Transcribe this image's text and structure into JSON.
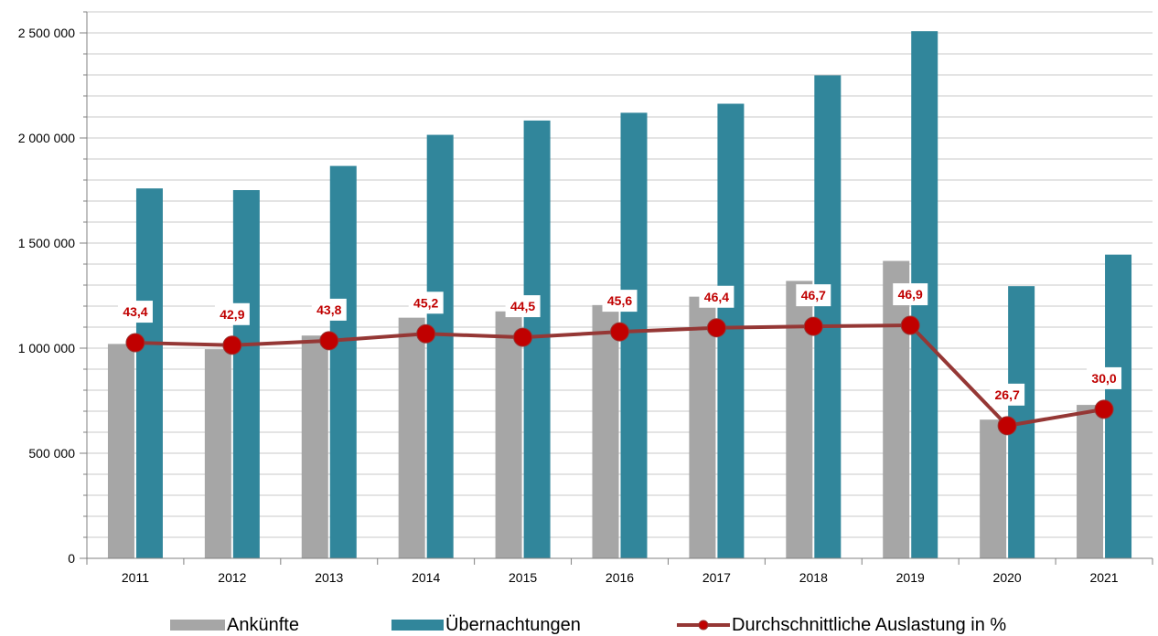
{
  "chart_data": {
    "type": "bar",
    "categories": [
      "2011",
      "2012",
      "2013",
      "2014",
      "2015",
      "2016",
      "2017",
      "2018",
      "2019",
      "2020",
      "2021"
    ],
    "series": [
      {
        "name": "Ankünfte",
        "type": "bar",
        "axis": "left",
        "color": "#A6A6A6",
        "values": [
          1020000,
          995000,
          1060000,
          1145000,
          1175000,
          1205000,
          1245000,
          1320000,
          1415000,
          660000,
          730000
        ]
      },
      {
        "name": "Übernachtungen",
        "type": "bar",
        "axis": "left",
        "color": "#31869B",
        "values": [
          1760000,
          1752000,
          1867000,
          2015000,
          2083000,
          2120000,
          2163000,
          2298000,
          2508000,
          1295000,
          1445000
        ]
      },
      {
        "name": "Durchschnittliche Auslastung in %",
        "type": "line",
        "axis": "right",
        "color": "#953735",
        "marker_color": "#C00000",
        "values": [
          43.4,
          42.9,
          43.8,
          45.2,
          44.5,
          45.6,
          46.4,
          46.7,
          46.9,
          26.7,
          30.0
        ],
        "labels": [
          "43,4",
          "42,9",
          "43,8",
          "45,2",
          "44,5",
          "45,6",
          "46,4",
          "46,7",
          "46,9",
          "26,7",
          "30,0"
        ]
      }
    ],
    "y_axis": {
      "ylim": [
        0,
        2500000
      ],
      "ticks": [
        0,
        500000,
        1000000,
        1500000,
        2000000,
        2500000
      ],
      "tick_labels": [
        "0",
        "500 000",
        "1 000 000",
        "1 500 000",
        "2 000 000",
        "2 500 000"
      ]
    },
    "secondary_axis_range": [
      0,
      110
    ],
    "grid": true,
    "legend_position": "bottom",
    "title": "",
    "xlabel": "",
    "ylabel": ""
  }
}
